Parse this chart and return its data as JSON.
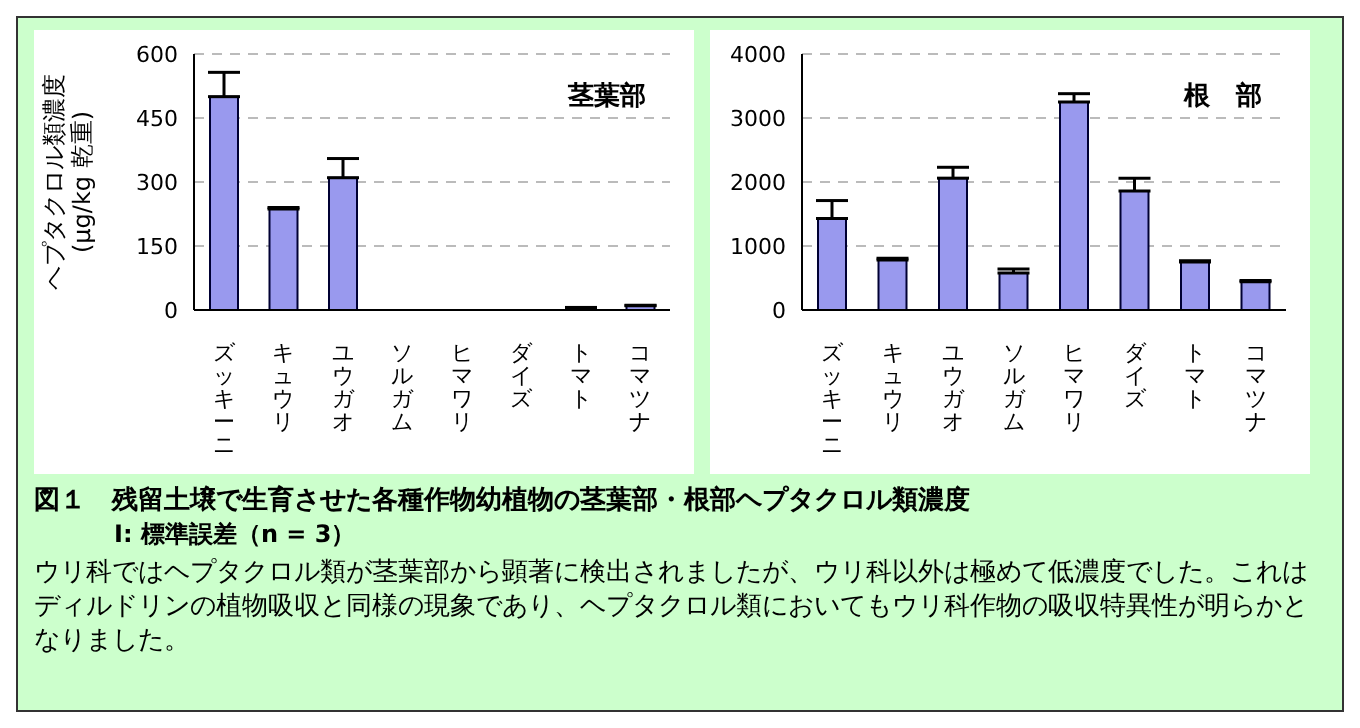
{
  "chart_data": [
    {
      "type": "bar",
      "title": "図１　残留土壌で生育させた各種作物幼植物の茎葉部・根部ヘプタクロル類濃度",
      "subtitle": "I:  標準誤差（n = 3）",
      "ylabel": "ヘプタクロル類濃度\n(μg/kg 乾重)",
      "categories": [
        "ズッキーニ",
        "キュウリ",
        "ユウガオ",
        "ソルガム",
        "ヒマワリ",
        "ダイズ",
        "トマト",
        "コマツナ"
      ],
      "series": [
        {
          "color": "#9999ee",
          "values": [
            500,
            237,
            310,
            0,
            0,
            0,
            5,
            10
          ],
          "errors": [
            [
              500,
              557
            ],
            [
              237,
              240
            ],
            [
              310,
              355
            ],
            null,
            null,
            null,
            [
              5,
              6
            ],
            [
              10,
              11
            ]
          ]
        }
      ],
      "ylim": [
        0,
        600
      ],
      "yticks": [
        0,
        150,
        300,
        450,
        600
      ],
      "grid": "y",
      "legend": false,
      "annotations": [
        "茎葉部",
        "ウリ科ではヘプタクロル類が茎葉部から顕著に検出されましたが、ウリ科以外は極めて低濃度でした。これはディルドリンの植物吸収と同様の現象であり、ヘプタクロル類においてもウリ科作物の吸収特異性が明らかとなりました。"
      ]
    },
    {
      "type": "bar",
      "categories": [
        "ズッキーニ",
        "キュウリ",
        "ユウガオ",
        "ソルガム",
        "ヒマワリ",
        "ダイズ",
        "トマト",
        "コマツナ"
      ],
      "series": [
        {
          "color": "#9999ee",
          "values": [
            1430,
            780,
            2060,
            580,
            3250,
            1860,
            750,
            440
          ],
          "errors": [
            [
              1430,
              1710
            ],
            [
              780,
              810
            ],
            [
              2060,
              2230
            ],
            [
              580,
              640
            ],
            [
              3250,
              3380
            ],
            [
              1860,
              2060
            ],
            [
              750,
              770
            ],
            [
              440,
              460
            ]
          ]
        }
      ],
      "ylim": [
        0,
        4000
      ],
      "yticks": [
        0,
        1000,
        2000,
        3000,
        4000
      ],
      "grid": "y",
      "legend": false,
      "annotations": [
        "根　部"
      ]
    }
  ]
}
